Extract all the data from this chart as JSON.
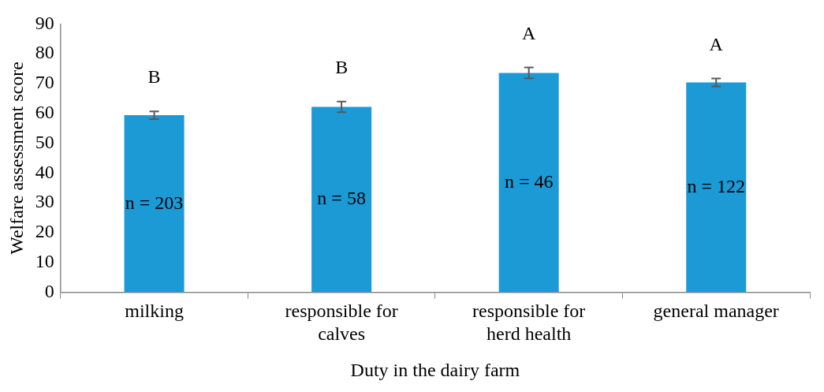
{
  "chart_data": {
    "type": "bar",
    "xlabel": "Duty in the dairy farm",
    "ylabel": "Welfare assessment score",
    "categories": [
      "milking",
      "responsible for calves",
      "responsible for herd health",
      "general manager"
    ],
    "values": [
      59.4,
      62.2,
      73.6,
      70.4
    ],
    "errors": [
      1.3,
      1.8,
      1.8,
      1.3
    ],
    "color": "#1b9ad6",
    "ylim": [
      0,
      90
    ],
    "yticks": [
      0,
      10,
      20,
      30,
      40,
      50,
      60,
      70,
      80,
      90
    ],
    "grid": false,
    "annotations": [
      "B",
      "B",
      "A",
      "A",
      "n = 203",
      "n = 58",
      "n = 46",
      "n = 122"
    ]
  }
}
